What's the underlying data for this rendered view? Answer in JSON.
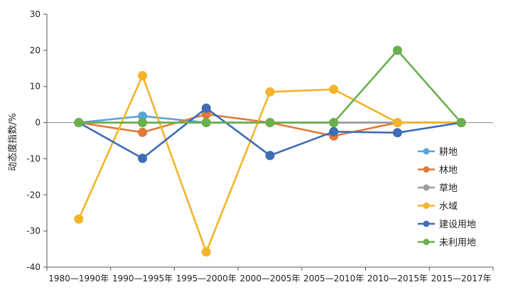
{
  "chart_data": {
    "type": "line",
    "categories": [
      "1980—1990年",
      "1990—1995年",
      "1995—2000年",
      "2000—2005年",
      "2005—2010年",
      "2010—2015年",
      "2015—2017年"
    ],
    "ylabel": "动态度指数/%",
    "ylim": [
      -40,
      30
    ],
    "yticks": [
      30,
      20,
      10,
      0,
      -10,
      -20,
      -30,
      -40
    ],
    "legend_position": "right",
    "series": [
      {
        "name": "耕地",
        "color": "#5aa5d6",
        "values": [
          0,
          1.8,
          0,
          0,
          0,
          0,
          0
        ]
      },
      {
        "name": "林地",
        "color": "#e07a3a",
        "values": [
          0,
          -2.7,
          2.3,
          0,
          -3.7,
          0,
          0
        ]
      },
      {
        "name": "草地",
        "color": "#9e9e9e",
        "values": [
          0,
          0,
          0,
          0,
          0,
          0,
          0
        ]
      },
      {
        "name": "水域",
        "color": "#f2b52a",
        "values": [
          -26.7,
          13,
          -35.8,
          8.5,
          9.2,
          0,
          0
        ]
      },
      {
        "name": "建设用地",
        "color": "#3e6cb5",
        "values": [
          0,
          -9.9,
          4,
          -9.1,
          -2.5,
          -2.8,
          0
        ]
      },
      {
        "name": "未利用地",
        "color": "#6ab04c",
        "values": [
          0,
          0,
          0,
          0,
          0,
          20,
          0
        ]
      }
    ]
  }
}
